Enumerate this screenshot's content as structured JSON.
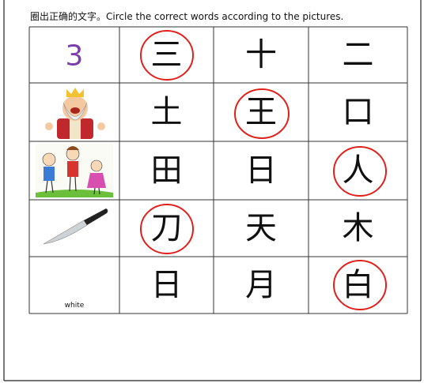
{
  "instruction": "圈出正确的文字。Circle the correct words according to the pictures.",
  "table": {
    "rows": [
      {
        "label": "3",
        "options": [
          "三",
          "十",
          "二"
        ]
      },
      {
        "options": [
          "土",
          "王",
          "口"
        ]
      },
      {
        "options": [
          "田",
          "日",
          "人"
        ]
      },
      {
        "options": [
          "刀",
          "天",
          "木"
        ]
      },
      {
        "label": "white",
        "options": [
          "日",
          "月",
          "白"
        ]
      }
    ]
  }
}
